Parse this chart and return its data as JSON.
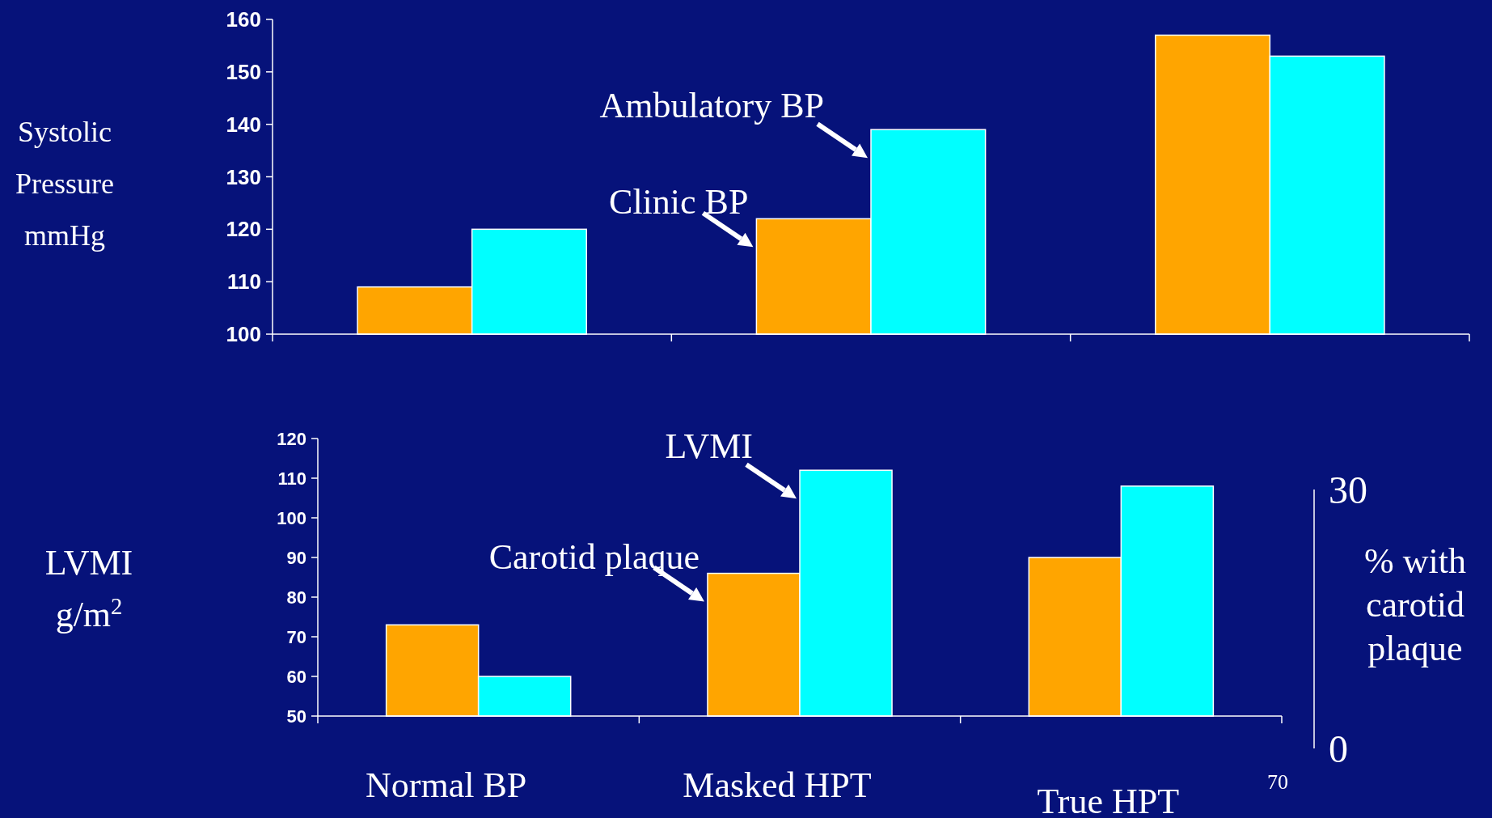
{
  "chart_data": [
    {
      "type": "bar",
      "categories": [
        null,
        null,
        null
      ],
      "ylabel": "Systolic\nPressure\nmmHg",
      "ylim": [
        100,
        160
      ],
      "yticks": [
        100,
        110,
        120,
        130,
        140,
        150,
        160
      ],
      "series": [
        {
          "name": "Clinic BP",
          "color": "#ffa500",
          "values": [
            109,
            122,
            157
          ]
        },
        {
          "name": "Ambulatory BP",
          "color": "#00ffff",
          "values": [
            120,
            139,
            153
          ]
        }
      ]
    },
    {
      "type": "bar",
      "categories": [
        "Normal BP",
        "Masked HPT",
        "True HPT"
      ],
      "ylabel": "LVMI\ng/m$^{2}$",
      "y2label": "% with\ncarotid\nplaque",
      "ylim": [
        50,
        120
      ],
      "yticks": [
        50,
        60,
        70,
        80,
        90,
        100,
        110,
        120
      ],
      "y2lim": [
        0,
        30
      ],
      "y2ticks": [
        0,
        30
      ],
      "annotations": [
        "70"
      ],
      "series": [
        {
          "name": "Carotid plaque",
          "color": "#ffa500",
          "values": [
            73,
            86,
            90
          ]
        },
        {
          "name": "LVMI",
          "color": "#00ffff",
          "values": [
            60,
            112,
            108
          ]
        }
      ]
    }
  ]
}
